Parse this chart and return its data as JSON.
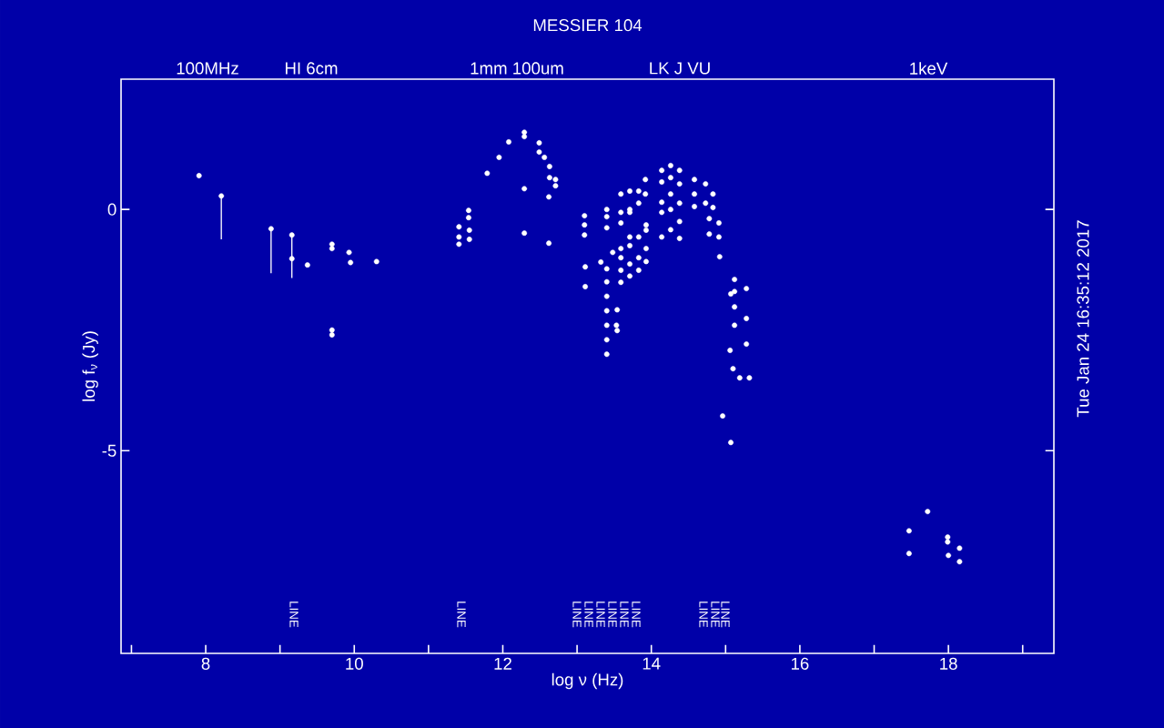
{
  "chart_data": {
    "type": "scatter",
    "title": "MESSIER 104",
    "xlabel": "log ν (Hz)",
    "ylabel": "log f$_{ν}$ (Jy)",
    "xlim": [
      6.86,
      19.42
    ],
    "ylim": [
      -9.2,
      2.7
    ],
    "xticks": [
      {
        "value": 7,
        "label": null
      },
      8,
      {
        "value": 9,
        "label": null
      },
      10,
      {
        "value": 11,
        "label": null
      },
      12,
      {
        "value": 13,
        "label": null
      },
      14,
      {
        "value": 15,
        "label": null
      },
      16,
      {
        "value": 17,
        "label": null
      },
      18,
      {
        "value": 19,
        "label": null
      }
    ],
    "yticks": [
      0,
      -5
    ],
    "series": [
      {
        "color": "#ffffff",
        "x": [
          7.91,
          9.16,
          9.37,
          9.7,
          9.7,
          9.93,
          9.95,
          10.3,
          9.7,
          9.7,
          11.54,
          11.54,
          11.41,
          11.41,
          11.41,
          11.55,
          11.55,
          11.79,
          11.95,
          12.08,
          12.29,
          12.29,
          12.29,
          12.29,
          12.49,
          12.49,
          12.56,
          12.63,
          12.63,
          12.71,
          12.71,
          12.62,
          12.62,
          13.1,
          13.1,
          13.1,
          13.11,
          13.11,
          13.4,
          13.4,
          13.4,
          13.48,
          13.32,
          13.4,
          13.4,
          13.4,
          13.4,
          13.4,
          13.4,
          13.4,
          13.53,
          13.59,
          13.59,
          13.59,
          13.71,
          13.71,
          13.71,
          13.83,
          13.83,
          13.92,
          13.92,
          14.14,
          14.14,
          14.26,
          14.26,
          14.38,
          14.38,
          14.14,
          14.14,
          14.14,
          14.26,
          14.26,
          14.26,
          14.38,
          14.38,
          14.38,
          14.58,
          14.58,
          14.58,
          14.73,
          14.73,
          14.78,
          14.78,
          14.83,
          14.83,
          14.91,
          14.91,
          14.92,
          13.59,
          13.59,
          13.59,
          13.59,
          13.54,
          13.54,
          13.71,
          13.71,
          13.71,
          13.71,
          13.83,
          13.83,
          13.83,
          13.93,
          13.93,
          13.93,
          13.93,
          15.12,
          15.12,
          15.12,
          15.12,
          15.28,
          15.28,
          15.28,
          15.07,
          15.06,
          15.1,
          15.19,
          15.32,
          14.96,
          15.07,
          17.72,
          17.47,
          17.47,
          17.99,
          17.99,
          18.0,
          18.15,
          18.15
        ],
        "values": [
          0.7,
          -1.02,
          -1.15,
          -0.72,
          -0.81,
          -0.89,
          -1.1,
          -1.08,
          -2.5,
          -2.6,
          -0.02,
          -0.17,
          -0.36,
          -0.57,
          -0.72,
          -0.43,
          -0.62,
          0.75,
          1.08,
          1.4,
          1.6,
          1.51,
          0.43,
          -0.49,
          1.38,
          1.19,
          1.08,
          0.89,
          0.66,
          0.62,
          0.49,
          0.26,
          -0.7,
          -0.13,
          -0.32,
          -0.53,
          -1.19,
          -1.6,
          0.0,
          -0.15,
          -0.38,
          -0.89,
          -1.09,
          -1.23,
          -1.5,
          -1.8,
          -2.1,
          -2.4,
          -2.7,
          -3.0,
          -2.4,
          0.32,
          -0.06,
          -0.28,
          0.38,
          0.0,
          -0.06,
          0.38,
          0.13,
          0.62,
          0.32,
          0.81,
          0.57,
          0.91,
          0.66,
          0.81,
          0.53,
          0.15,
          -0.06,
          -0.57,
          0.32,
          0.0,
          -0.42,
          0.13,
          -0.25,
          -0.6,
          0.62,
          0.32,
          0.06,
          0.53,
          0.13,
          -0.19,
          -0.51,
          0.32,
          0.04,
          -0.28,
          -0.57,
          -0.98,
          -0.81,
          -1.0,
          -1.26,
          -1.51,
          -2.08,
          -2.51,
          -0.57,
          -0.75,
          -1.13,
          -1.38,
          -0.57,
          -1.0,
          -1.26,
          -0.32,
          -0.43,
          -0.81,
          -1.08,
          -1.45,
          -1.7,
          -2.02,
          -2.4,
          -1.64,
          -2.26,
          -2.79,
          -1.75,
          -2.92,
          -3.3,
          -3.49,
          -3.49,
          -4.28,
          -4.83,
          -6.26,
          -6.66,
          -7.13,
          -6.79,
          -6.89,
          -7.17,
          -7.02,
          -7.3
        ]
      },
      {
        "color": "#ffffff",
        "x": [
          8.21,
          8.88,
          9.16
        ],
        "values": [
          0.28,
          -0.4,
          -0.53
        ],
        "errors": [
          [
            -0.62,
            0.28
          ],
          [
            -1.32,
            -0.4
          ],
          [
            -1.42,
            -0.53
          ]
        ]
      }
    ],
    "annotations": [
      "Tue Jan 24 16:35:12 2017",
      "100MHz",
      "HI 6cm",
      "1mm 100um",
      "LK J VU",
      "1keV",
      "LINE",
      "LINE",
      "LINE",
      "LINE",
      "LINE",
      "LINE",
      "LINE",
      "LINE",
      "LINE",
      "LINE",
      "LINE"
    ]
  }
}
